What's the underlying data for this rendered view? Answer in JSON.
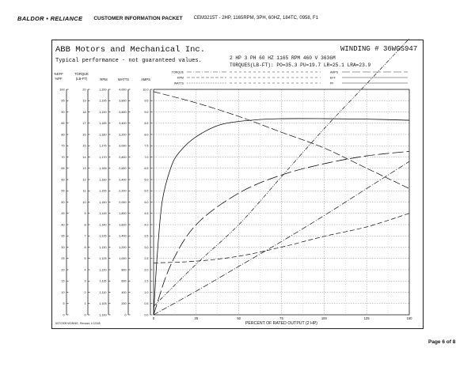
{
  "header": {
    "brand": "BALDOR • RELIANCE",
    "packet": "CUSTOMER INFORMATION PACKET",
    "spec": "CEM3215T - 2HP, 1165RPM, 3PH, 60HZ, 184TC, 0958, F1"
  },
  "sheet": {
    "company": "ABB Motors and Mechanical Inc.",
    "typical": "Typical performance - not guaranteed values.",
    "winding": "WINDING # 36WGS947",
    "specline": "2 HP  3 PH  60 HZ  1165 RPM  460 V  3636M",
    "torqueline": "TORQUES(LB-FT): PO=35.3  PU=19.7  LR=25.1  LRA=23.9",
    "footer_note": "5/27/2009  MCINNIS , Rexnord, # 12345"
  },
  "legend_left": [
    "TORQUE",
    "RPM",
    "WATTS"
  ],
  "legend_right": [
    "AMPS",
    "EFF",
    "PF"
  ],
  "page": "Page 6 of 8",
  "chart_data": {
    "type": "line",
    "xlabel": "PERCENT OF RATED OUTPUT (2 HP)",
    "xlim": [
      0,
      150
    ],
    "xticks": [
      0,
      25,
      50,
      75,
      100,
      125,
      150
    ],
    "columns": [
      {
        "header": "%EFF\n%PF",
        "ticks": [
          "100",
          "95",
          "90",
          "85",
          "80",
          "75",
          "70",
          "65",
          "60",
          "55",
          "50",
          "45",
          "40",
          "35",
          "30",
          "25",
          "20",
          "15",
          "10",
          "5",
          "0"
        ]
      },
      {
        "header": "TORQUE\n(LB-FT)",
        "ticks": [
          "20",
          "19",
          "18",
          "17",
          "16",
          "15",
          "14",
          "13",
          "12",
          "11",
          "10",
          "9",
          "8",
          "7",
          "6",
          "5",
          "4",
          "3",
          "2",
          "1",
          "0"
        ]
      },
      {
        "header": "RPM",
        "ticks": [
          "1,200",
          "1,195",
          "1,190",
          "1,185",
          "1,180",
          "1,175",
          "1,170",
          "1,165",
          "1,160",
          "1,155",
          "1,150",
          "1,145",
          "1,140",
          "1,135",
          "1,130",
          "1,125",
          "1,120",
          "1,115",
          "1,110",
          "1,105",
          "1,100"
        ]
      },
      {
        "header": "WATTS",
        "ticks": [
          "4,000",
          "3,800",
          "3,600",
          "3,400",
          "3,200",
          "3,000",
          "2,800",
          "2,600",
          "2,400",
          "2,200",
          "2,000",
          "1,800",
          "1,600",
          "1,400",
          "1,200",
          "1,000",
          "800",
          "600",
          "400",
          "200",
          "0"
        ]
      },
      {
        "header": "AMPS",
        "ticks": [
          "10.0",
          "9.5",
          "9.0",
          "8.5",
          "8.0",
          "7.5",
          "7.0",
          "6.5",
          "6.0",
          "5.5",
          "5.0",
          "4.5",
          "4.0",
          "3.5",
          "3.0",
          "2.5",
          "2.0",
          "1.5",
          "1.0",
          "0.5",
          "0.0"
        ]
      }
    ],
    "series": [
      {
        "name": "EFF",
        "unit": "%",
        "x": [
          0,
          2,
          5,
          10,
          15,
          25,
          40,
          60,
          75,
          100,
          125,
          150
        ],
        "y": [
          0,
          25,
          50,
          65,
          72,
          79,
          84.5,
          86.5,
          87,
          87,
          86.8,
          86.3
        ]
      },
      {
        "name": "PF",
        "unit": "%",
        "x": [
          0,
          10,
          25,
          50,
          75,
          100,
          125,
          150
        ],
        "y": [
          0,
          22,
          40,
          54,
          62,
          67,
          70.5,
          72.5
        ]
      },
      {
        "name": "RPM",
        "unit": "rpm",
        "x": [
          0,
          25,
          50,
          75,
          100,
          125,
          150
        ],
        "y": [
          1199,
          1194,
          1188,
          1181,
          1174,
          1165,
          1156
        ]
      },
      {
        "name": "TORQUE",
        "unit": "lb-ft",
        "x": [
          0,
          25,
          50,
          75,
          100,
          125,
          150
        ],
        "y": [
          0,
          2.1,
          4.3,
          6.5,
          8.8,
          11.2,
          13.6
        ]
      },
      {
        "name": "WATTS",
        "unit": "W",
        "x": [
          0,
          25,
          50,
          75,
          100,
          125,
          150
        ],
        "y": [
          150,
          900,
          1600,
          2450,
          3300,
          4100,
          4900
        ]
      },
      {
        "name": "AMPS",
        "unit": "A",
        "x": [
          0,
          25,
          50,
          75,
          100,
          125,
          150
        ],
        "y": [
          2.3,
          2.38,
          2.6,
          3.0,
          3.48,
          3.9,
          4.5
        ]
      }
    ]
  }
}
